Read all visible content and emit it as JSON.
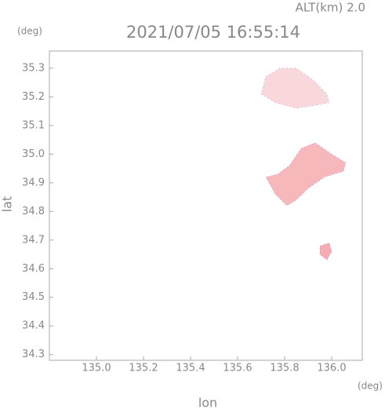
{
  "chart_data": {
    "type": "map",
    "title": "2021/07/05 16:55:14",
    "header": "ALT(km) 2.0",
    "x_label": "lon",
    "y_label": "lat",
    "x_unit": "(deg)",
    "y_unit": "(deg)",
    "xlim": [
      134.8,
      136.13
    ],
    "ylim": [
      34.28,
      35.36
    ],
    "xticks": [
      {
        "value": 135,
        "label": "135.0"
      },
      135.2,
      135.4,
      135.6,
      135.8,
      {
        "value": 136,
        "label": "136.0"
      }
    ],
    "yticks": [
      34.3,
      34.4,
      34.5,
      34.6,
      34.7,
      34.8,
      34.9,
      {
        "value": 35,
        "label": "35.0"
      },
      35.1,
      35.2,
      35.3
    ],
    "regions": [
      {
        "color": "#f9d8dc",
        "lon": [
          135.72,
          135.78,
          135.85,
          135.92,
          135.98,
          135.99,
          135.93,
          135.85,
          135.76,
          135.7
        ],
        "lat": [
          35.27,
          35.3,
          35.3,
          35.26,
          35.21,
          35.18,
          35.17,
          35.16,
          35.18,
          35.21
        ]
      },
      {
        "color": "#f7b8bc",
        "lon": [
          135.77,
          135.82,
          135.87,
          135.93,
          136.0,
          136.06,
          136.05,
          135.97,
          135.9,
          135.85,
          135.81,
          135.76,
          135.72
        ],
        "lat": [
          34.93,
          34.96,
          35.02,
          35.04,
          35.0,
          34.97,
          34.94,
          34.92,
          34.88,
          34.84,
          34.82,
          34.86,
          34.92
        ]
      },
      {
        "color": "#f5adb3",
        "lon": [
          135.95,
          135.99,
          136.0,
          135.98,
          135.95
        ],
        "lat": [
          34.68,
          34.69,
          34.66,
          34.63,
          34.65
        ]
      }
    ]
  }
}
